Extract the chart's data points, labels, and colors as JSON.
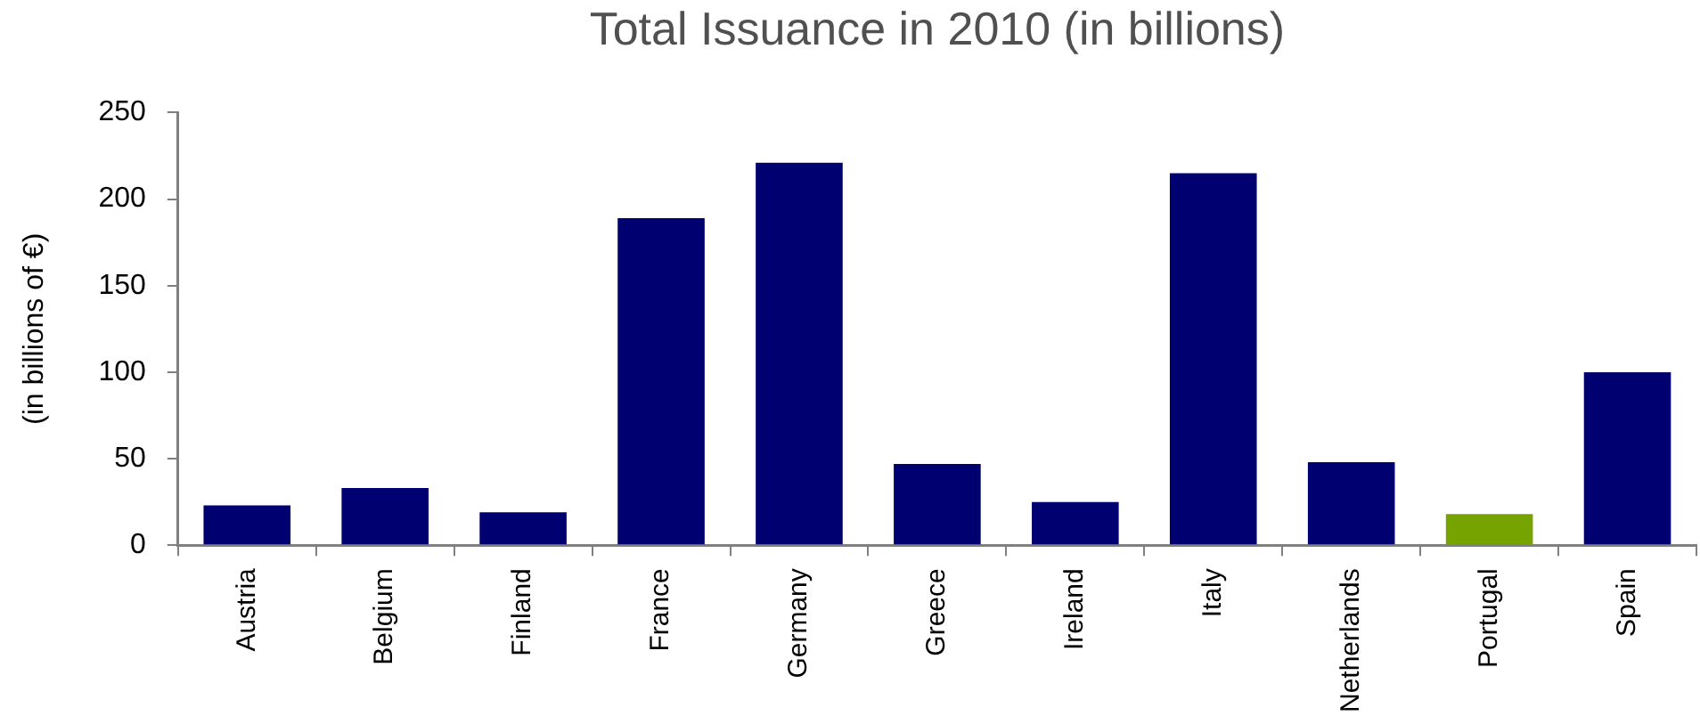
{
  "chart_data": {
    "type": "bar",
    "title": "Total Issuance in 2010 (in billions)",
    "ylabel": "(in billions of €)",
    "categories": [
      "Austria",
      "Belgium",
      "Finland",
      "France",
      "Germany",
      "Greece",
      "Ireland",
      "Italy",
      "Netherlands",
      "Portugal",
      "Spain"
    ],
    "values": [
      23,
      33,
      19,
      189,
      221,
      47,
      25,
      215,
      48,
      18,
      100
    ],
    "colors": [
      "#000070",
      "#000070",
      "#000070",
      "#000070",
      "#000070",
      "#000070",
      "#000070",
      "#000070",
      "#000070",
      "#77a300",
      "#000070"
    ],
    "ylim": [
      0,
      250
    ],
    "yticks": [
      0,
      50,
      100,
      150,
      200,
      250
    ],
    "grid": false,
    "legend": false
  }
}
